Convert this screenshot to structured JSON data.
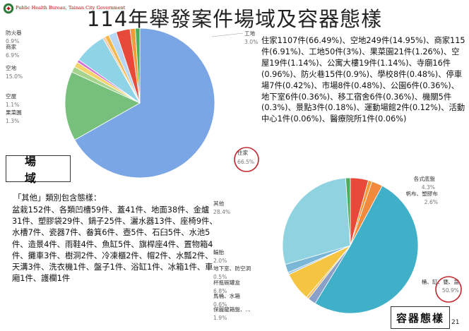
{
  "header": {
    "org_name": "Public Health Bureau, Tainan City Government",
    "title": "114年舉發案件場域及容器態樣",
    "page_number": "21"
  },
  "venue_box_label": "場域",
  "container_box_label": "容器態樣",
  "venue_stats_text": "住家1107件(66.49%)、空地249件(14.95%)、商家115件(6.91%)、工地50件(3%)、果菜園21件(1.26%)、空屋19件(1.14%)、公寓大樓19件(1.14%)、寺廟16件(0.96%)、防火巷15件(0.9%)、學校8件(0.48%)、停車場7件(0.42%)、市場8件(0.48%)、公園6件(0.36%)、地下室6件(0.36%)、移工宿舍6件(0.36%)、機關5件(0.3%)、景點3件(0.18%)、運動場館2件(0.12%)、活動中心1件(0.06%)、醫療院所1件(0.06%)",
  "other_note": {
    "title": "「其他」類別包含態樣：",
    "text": "盆栽152件、各類凹槽59件、蓋41件、地面38件、金爐31件、塑膠袋29件、鍋子25件、灑水器13件、座椅9件、水槽7件、瓷器7件、畚箕6件、壺5件、石臼5件、水池5件、造景4件、雨鞋4件、魚缸5件、旗桿座4件、置物箱4件、攤車3件、樹洞2件、冷凍櫃2件、帽2件、水瓢2件、天溝3件、洗衣機1件、盤子1件、浴缸1件、冰箱1件、車廂1件、護欄1件"
  },
  "chart_data": [
    {
      "type": "pie",
      "start_angle_deg": 0,
      "direction": "clockwise",
      "slices": [
        {
          "label": "住家",
          "pct_label": "66.5%",
          "value": 66.49,
          "color": "#7ba6e6"
        },
        {
          "label": "空地",
          "pct_label": "15.0%",
          "value": 14.95,
          "color": "#76c07c"
        },
        {
          "label": "果菜園",
          "pct_label": "1.3%",
          "value": 1.26,
          "color": "#a7d48c"
        },
        {
          "label": "空屋",
          "pct_label": "1.1%",
          "value": 1.14,
          "color": "#f4d36a"
        },
        {
          "label": "",
          "pct_label": "",
          "value": 0.6,
          "color": "#d46fd4"
        },
        {
          "label": "商家",
          "pct_label": "6.9%",
          "value": 6.91,
          "color": "#8fd3e6"
        },
        {
          "label": "",
          "pct_label": "",
          "value": 0.5,
          "color": "#f6c4a0"
        },
        {
          "label": "防火巷",
          "pct_label": "0.9%",
          "value": 0.9,
          "color": "#f2b84b"
        },
        {
          "label": "",
          "pct_label": "",
          "value": 1.7,
          "color": "#b9d6f2"
        },
        {
          "label": "工地",
          "pct_label": "3.0%",
          "value": 3.0,
          "color": "#e84a3a"
        },
        {
          "label": "",
          "pct_label": "",
          "value": 1.14,
          "color": "#f39a3a"
        },
        {
          "label": "",
          "pct_label": "",
          "value": 0.96,
          "color": "#4cae5c"
        }
      ]
    },
    {
      "type": "pie",
      "start_angle_deg": 0,
      "direction": "clockwise",
      "slices": [
        {
          "label": "各式底盤",
          "pct_label": "4.3%",
          "value": 4.3,
          "color": "#e84a3a"
        },
        {
          "label": "",
          "pct_label": "",
          "value": 0.9,
          "color": "#f39a3a"
        },
        {
          "label": "帆布、塑膠布",
          "pct_label": "2.6%",
          "value": 2.6,
          "color": "#f28a3e"
        },
        {
          "label": "桶、缸、甕、盆",
          "pct_label": "50.9%",
          "value": 50.9,
          "color": "#3fb0c8"
        },
        {
          "label": "保麗龍箱盤、...",
          "pct_label": "1.9%",
          "value": 1.9,
          "color": "#8aa0c8"
        },
        {
          "label": "馬桶、水箱",
          "pct_label": "0.6%",
          "value": 0.6,
          "color": "#f0c060"
        },
        {
          "label": "杯瓶碗罐盒",
          "pct_label": "6.8%",
          "value": 6.8,
          "color": "#f5c542"
        },
        {
          "label": "地下室、防空洞",
          "pct_label": "0.5%",
          "value": 0.5,
          "color": "#a0c8e8"
        },
        {
          "label": "輪胎",
          "pct_label": "2.0%",
          "value": 2.0,
          "color": "#7ab6d6"
        },
        {
          "label": "其他",
          "pct_label": "28.4%",
          "value": 28.4,
          "color": "#8fd3e0"
        },
        {
          "label": "",
          "pct_label": "",
          "value": 1.1,
          "color": "#4cae5c"
        }
      ]
    }
  ]
}
